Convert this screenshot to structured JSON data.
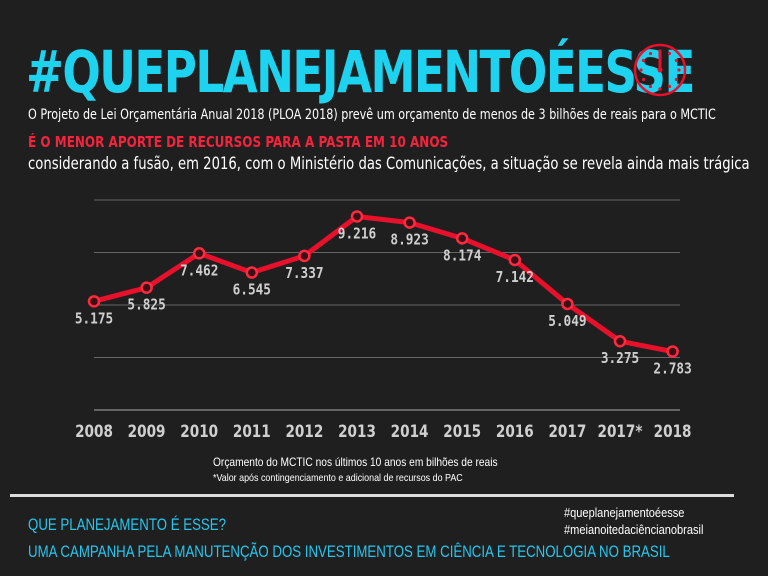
{
  "header": {
    "title": "#QUEPLANEJAMENTOÉESSE",
    "line1": "O Projeto de Lei Orçamentária Anual 2018 (PLOA 2018) prevê um orçamento de menos de 3 bilhões de reais para o MCTIC",
    "line2": "É O MENOR APORTE DE RECURSOS PARA A PASTA EM 10 ANOS",
    "line3": "considerando a fusão, em 2016, com o Ministério das Comunicações, a situação se revela ainda mais trágica"
  },
  "chart_data": {
    "type": "line",
    "title": "Orçamento do MCTIC nos últimos 10 anos em bilhões de reais",
    "note": "*Valor após contingenciamento e adicional de recursos do PAC",
    "xlabel": "",
    "ylabel": "",
    "categories": [
      "2008",
      "2009",
      "2010",
      "2011",
      "2012",
      "2013",
      "2014",
      "2015",
      "2016",
      "2017",
      "2017*",
      "2018"
    ],
    "values": [
      5.175,
      5.825,
      7.462,
      6.545,
      7.337,
      9.216,
      8.923,
      8.174,
      7.142,
      5.049,
      3.275,
      2.783
    ],
    "labels": [
      "5.175",
      "5.825",
      "7.462",
      "6.545",
      "7.337",
      "9.216",
      "8.923",
      "8.174",
      "7.142",
      "5.049",
      "3.275",
      "2.783"
    ],
    "ylim": [
      0,
      10
    ],
    "grid": true,
    "color": "#e8102a"
  },
  "footer": {
    "line1": "QUE PLANEJAMENTO É ESSE?",
    "line2": "UMA CAMPANHA PELA MANUTENÇÃO DOS INVESTIMENTOS EM CIÊNCIA E TECNOLOGIA NO BRASIL",
    "tag1": "#queplanejamentoéesse",
    "tag2": "#meianoitedaciêncianobrasil"
  },
  "icons": {
    "clock": "clock-icon"
  }
}
